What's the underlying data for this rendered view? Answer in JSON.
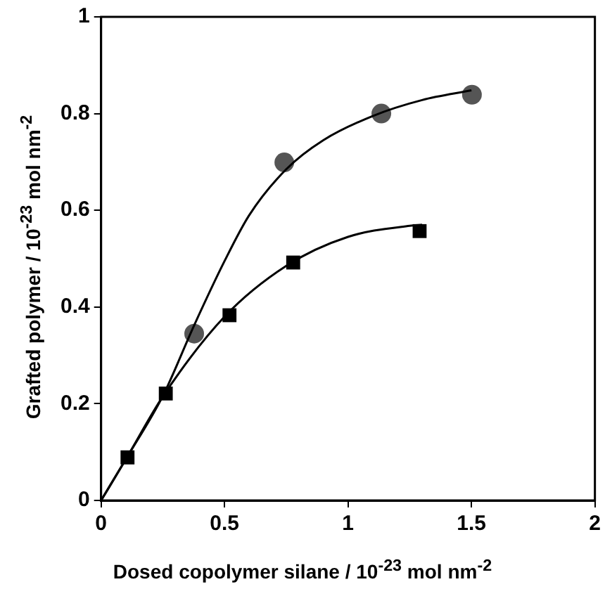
{
  "chart_data": {
    "type": "scatter",
    "xlabel": "Dosed copolymer silane / 10$^{-23}$ mol nm$^{-2}$",
    "ylabel": "Grafted polymer / 10$^{-23}$ mol nm$^{-2}$",
    "xlim": [
      0,
      2
    ],
    "xticks": [
      0,
      0.5,
      1,
      1.5,
      2
    ],
    "ylim": [
      0,
      1
    ],
    "yticks": [
      0,
      0.2,
      0.4,
      0.6,
      0.8,
      1
    ],
    "grid": false,
    "legend": false,
    "series": [
      {
        "type": "line",
        "color": "#000000",
        "marker": "none",
        "x": [
          0,
          0.1,
          0.25,
          0.375,
          0.5,
          0.6,
          0.75,
          0.9,
          1.1,
          1.3,
          1.5
        ],
        "values": [
          0,
          0.085,
          0.216,
          0.36,
          0.495,
          0.59,
          0.685,
          0.745,
          0.795,
          0.828,
          0.848
        ]
      },
      {
        "type": "line",
        "color": "#000000",
        "marker": "none",
        "x": [
          0,
          0.1,
          0.25,
          0.5,
          0.75,
          1,
          1.25,
          1.3
        ],
        "values": [
          0,
          0.085,
          0.215,
          0.38,
          0.485,
          0.545,
          0.568,
          0.57
        ]
      },
      {
        "color": "#555555",
        "marker": "circle",
        "x": [
          0.377,
          0.742,
          1.135,
          1.502
        ],
        "values": [
          0.345,
          0.699,
          0.8,
          0.839
        ]
      },
      {
        "color": "#000000",
        "marker": "square",
        "x": [
          0.107,
          0.262,
          0.52,
          0.778,
          1.29
        ],
        "values": [
          0.089,
          0.221,
          0.383,
          0.492,
          0.557
        ]
      }
    ]
  }
}
